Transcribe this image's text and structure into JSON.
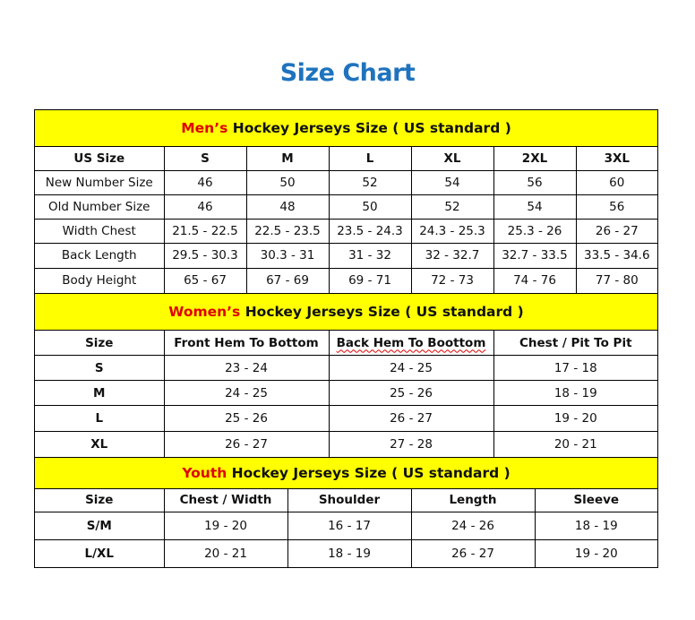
{
  "title": "Size Chart",
  "colors": {
    "title": "#1f73be",
    "header_bg": "#ffff00",
    "highlight": "#e00000"
  },
  "mens": {
    "highlight": "Men’s",
    "heading": " Hockey Jerseys Size ( US standard )",
    "columns": [
      "US Size",
      "S",
      "M",
      "L",
      "XL",
      "2XL",
      "3XL"
    ],
    "rows": [
      [
        "New Number Size",
        "46",
        "50",
        "52",
        "54",
        "56",
        "60"
      ],
      [
        "Old Number Size",
        "46",
        "48",
        "50",
        "52",
        "54",
        "56"
      ],
      [
        "Width Chest",
        "21.5 - 22.5",
        "22.5 - 23.5",
        "23.5 - 24.3",
        "24.3 - 25.3",
        "25.3 - 26",
        "26 - 27"
      ],
      [
        "Back Length",
        "29.5 - 30.3",
        "30.3 - 31",
        "31 - 32",
        "32 - 32.7",
        "32.7 - 33.5",
        "33.5 - 34.6"
      ],
      [
        "Body Height",
        "65 - 67",
        "67 - 69",
        "69 - 71",
        "72 - 73",
        "74 - 76",
        "77 - 80"
      ]
    ]
  },
  "womens": {
    "highlight": "Women’s",
    "heading": " Hockey Jerseys Size ( US standard )",
    "columns": [
      "Size",
      "Front Hem To Bottom",
      "Back Hem To Boottom",
      "Chest / Pit To Pit"
    ],
    "rows": [
      [
        "S",
        "23 - 24",
        "24 - 25",
        "17 - 18"
      ],
      [
        "M",
        "24 - 25",
        "25 - 26",
        "18 - 19"
      ],
      [
        "L",
        "25 - 26",
        "26 - 27",
        "19 - 20"
      ],
      [
        "XL",
        "26 - 27",
        "27 - 28",
        "20 - 21"
      ]
    ]
  },
  "youth": {
    "highlight": "Youth",
    "heading": " Hockey Jerseys Size ( US standard )",
    "columns": [
      "Size",
      "Chest / Width",
      "Shoulder",
      "Length",
      "Sleeve"
    ],
    "rows": [
      [
        "S/M",
        "19 - 20",
        "16 - 17",
        "24 - 26",
        "18 - 19"
      ],
      [
        "L/XL",
        "20 - 21",
        "18 - 19",
        "26 - 27",
        "19 - 20"
      ]
    ]
  }
}
